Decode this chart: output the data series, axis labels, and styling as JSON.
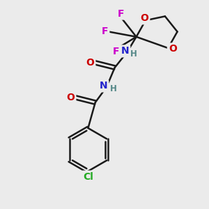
{
  "bg_color": "#ebebeb",
  "bond_color": "#1a1a1a",
  "bond_width": 1.8,
  "atom_colors": {
    "F": "#cc00cc",
    "O": "#cc0000",
    "N": "#2222cc",
    "H": "#558888",
    "Cl": "#22aa22",
    "C": "#1a1a1a"
  },
  "font_size_main": 10,
  "font_size_small": 8.5
}
